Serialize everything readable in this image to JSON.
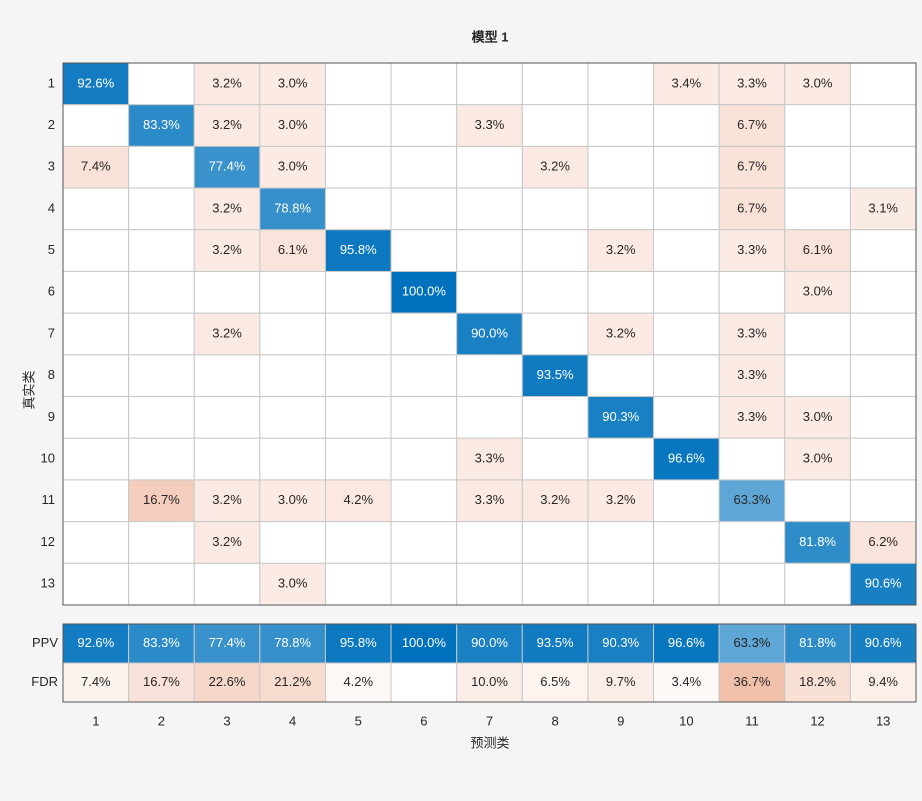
{
  "chart_data": {
    "type": "confusion_matrix",
    "title": "模型 1",
    "xlabel": "预测类",
    "ylabel": "真实类",
    "categories": [
      "1",
      "2",
      "3",
      "4",
      "5",
      "6",
      "7",
      "8",
      "9",
      "10",
      "11",
      "12",
      "13"
    ],
    "diagonal_color": "#0072bd",
    "off_diagonal_color": "#d95319",
    "values": [
      [
        92.6,
        null,
        3.2,
        3.0,
        null,
        null,
        null,
        null,
        null,
        3.4,
        3.3,
        3.0,
        null
      ],
      [
        null,
        83.3,
        3.2,
        3.0,
        null,
        null,
        3.3,
        null,
        null,
        null,
        6.7,
        null,
        null
      ],
      [
        7.4,
        null,
        77.4,
        3.0,
        null,
        null,
        null,
        3.2,
        null,
        null,
        6.7,
        null,
        null
      ],
      [
        null,
        null,
        3.2,
        78.8,
        null,
        null,
        null,
        null,
        null,
        null,
        6.7,
        null,
        3.1
      ],
      [
        null,
        null,
        3.2,
        6.1,
        95.8,
        null,
        null,
        null,
        3.2,
        null,
        3.3,
        6.1,
        null
      ],
      [
        null,
        null,
        null,
        null,
        null,
        100.0,
        null,
        null,
        null,
        null,
        null,
        3.0,
        null
      ],
      [
        null,
        null,
        3.2,
        null,
        null,
        null,
        90.0,
        null,
        3.2,
        null,
        3.3,
        null,
        null
      ],
      [
        null,
        null,
        null,
        null,
        null,
        null,
        null,
        93.5,
        null,
        null,
        3.3,
        null,
        null
      ],
      [
        null,
        null,
        null,
        null,
        null,
        null,
        null,
        null,
        90.3,
        null,
        3.3,
        3.0,
        null
      ],
      [
        null,
        null,
        null,
        null,
        null,
        null,
        3.3,
        null,
        null,
        96.6,
        null,
        3.0,
        null
      ],
      [
        null,
        16.7,
        3.2,
        3.0,
        4.2,
        null,
        3.3,
        3.2,
        3.2,
        null,
        63.3,
        null,
        null
      ],
      [
        null,
        null,
        3.2,
        null,
        null,
        null,
        null,
        null,
        null,
        null,
        null,
        81.8,
        6.2
      ],
      [
        null,
        null,
        null,
        3.0,
        null,
        null,
        null,
        null,
        null,
        null,
        null,
        null,
        90.6
      ]
    ],
    "value_labels": [
      [
        "92.6%",
        null,
        "3.2%",
        "3.0%",
        null,
        null,
        null,
        null,
        null,
        "3.4%",
        "3.3%",
        "3.0%",
        null
      ],
      [
        null,
        "83.3%",
        "3.2%",
        "3.0%",
        null,
        null,
        "3.3%",
        null,
        null,
        null,
        "6.7%",
        null,
        null
      ],
      [
        "7.4%",
        null,
        "77.4%",
        "3.0%",
        null,
        null,
        null,
        "3.2%",
        null,
        null,
        "6.7%",
        null,
        null
      ],
      [
        null,
        null,
        "3.2%",
        "78.8%",
        null,
        null,
        null,
        null,
        null,
        null,
        "6.7%",
        null,
        "3.1%"
      ],
      [
        null,
        null,
        "3.2%",
        "6.1%",
        "95.8%",
        null,
        null,
        null,
        "3.2%",
        null,
        "3.3%",
        "6.1%",
        null
      ],
      [
        null,
        null,
        null,
        null,
        null,
        "100.0%",
        null,
        null,
        null,
        null,
        null,
        "3.0%",
        null
      ],
      [
        null,
        null,
        "3.2%",
        null,
        null,
        null,
        "90.0%",
        null,
        "3.2%",
        null,
        "3.3%",
        null,
        null
      ],
      [
        null,
        null,
        null,
        null,
        null,
        null,
        null,
        "93.5%",
        null,
        null,
        "3.3%",
        null,
        null
      ],
      [
        null,
        null,
        null,
        null,
        null,
        null,
        null,
        null,
        "90.3%",
        null,
        "3.3%",
        "3.0%",
        null
      ],
      [
        null,
        null,
        null,
        null,
        null,
        null,
        "3.3%",
        null,
        null,
        "96.6%",
        null,
        "3.0%",
        null
      ],
      [
        null,
        "16.7%",
        "3.2%",
        "3.0%",
        "4.2%",
        null,
        "3.3%",
        "3.2%",
        "3.2%",
        null,
        "63.3%",
        null,
        null
      ],
      [
        null,
        null,
        "3.2%",
        null,
        null,
        null,
        null,
        null,
        null,
        null,
        null,
        "81.8%",
        "6.2%"
      ],
      [
        null,
        null,
        null,
        "3.0%",
        null,
        null,
        null,
        null,
        null,
        null,
        null,
        null,
        "90.6%"
      ]
    ],
    "summary_rows": [
      {
        "name": "PPV",
        "color": "#0072bd",
        "values": [
          92.6,
          83.3,
          77.4,
          78.8,
          95.8,
          100.0,
          90.0,
          93.5,
          90.3,
          96.6,
          63.3,
          81.8,
          90.6
        ],
        "value_labels": [
          "92.6%",
          "83.3%",
          "77.4%",
          "78.8%",
          "95.8%",
          "100.0%",
          "90.0%",
          "93.5%",
          "90.3%",
          "96.6%",
          "63.3%",
          "81.8%",
          "90.6%"
        ]
      },
      {
        "name": "FDR",
        "color": "#d95319",
        "values": [
          7.4,
          16.7,
          22.6,
          21.2,
          4.2,
          null,
          10.0,
          6.5,
          9.7,
          3.4,
          36.7,
          18.2,
          9.4
        ],
        "value_labels": [
          "7.4%",
          "16.7%",
          "22.6%",
          "21.2%",
          "4.2%",
          null,
          "10.0%",
          "6.5%",
          "9.7%",
          "3.4%",
          "36.7%",
          "18.2%",
          "9.4%"
        ]
      }
    ]
  }
}
